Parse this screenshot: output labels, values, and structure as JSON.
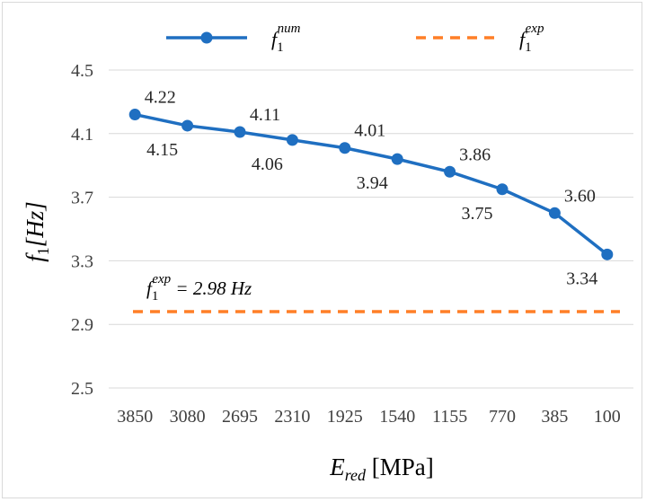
{
  "chart_data": {
    "type": "line",
    "categories": [
      "3850",
      "3080",
      "2695",
      "2310",
      "1925",
      "1540",
      "1155",
      "770",
      "385",
      "100"
    ],
    "series": [
      {
        "name": "f1_num",
        "legend_label": {
          "base": "f",
          "sub": "1",
          "sup": "num"
        },
        "values": [
          4.22,
          4.15,
          4.11,
          4.06,
          4.01,
          3.94,
          3.86,
          3.75,
          3.6,
          3.34
        ],
        "data_labels": [
          "4.22",
          "4.15",
          "4.11",
          "4.06",
          "4.01",
          "3.94",
          "3.86",
          "3.75",
          "3.60",
          "3.34"
        ],
        "color": "#1f6fc1",
        "style": "solid-with-markers"
      },
      {
        "name": "f1_exp",
        "legend_label": {
          "base": "f",
          "sub": "1",
          "sup": "exp"
        },
        "constant": 2.98,
        "color": "#ff7f27",
        "style": "dashed"
      }
    ],
    "ylim": [
      2.5,
      4.5
    ],
    "yticks": [
      "4.5",
      "4.1",
      "3.7",
      "3.3",
      "2.9",
      "2.5"
    ],
    "ylabel": {
      "base": "f",
      "sub": "1",
      "rest": "[Hz]"
    },
    "xlabel": {
      "base": "E",
      "sub": "red",
      "rest": " [MPa]"
    },
    "annotation": {
      "base": "f",
      "sub": "1",
      "sup": "exp",
      "rest": " = 2.98 Hz"
    },
    "grid": "horizontal",
    "legend_position": "top"
  }
}
